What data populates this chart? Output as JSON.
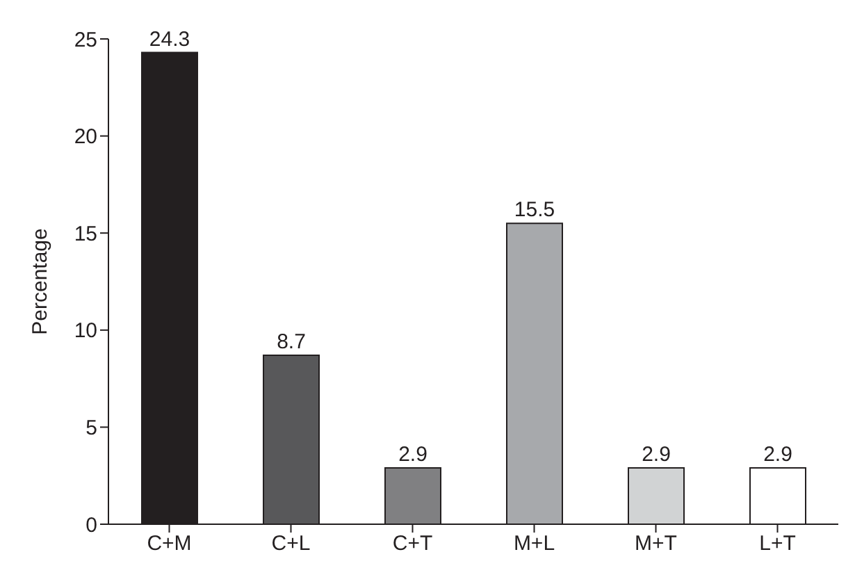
{
  "chart_data": {
    "type": "bar",
    "ylabel": "Percentage",
    "categories": [
      "C+M",
      "C+L",
      "C+T",
      "M+L",
      "M+T",
      "L+T"
    ],
    "values": [
      24.3,
      8.7,
      2.9,
      15.5,
      2.9,
      2.9
    ],
    "colors": [
      "#231f20",
      "#58585a",
      "#808082",
      "#a7a9ac",
      "#d1d3d4",
      "#ffffff"
    ],
    "ylim": [
      0,
      25
    ],
    "yticks": [
      0,
      5,
      10,
      15,
      20,
      25
    ],
    "data_labels": true
  }
}
